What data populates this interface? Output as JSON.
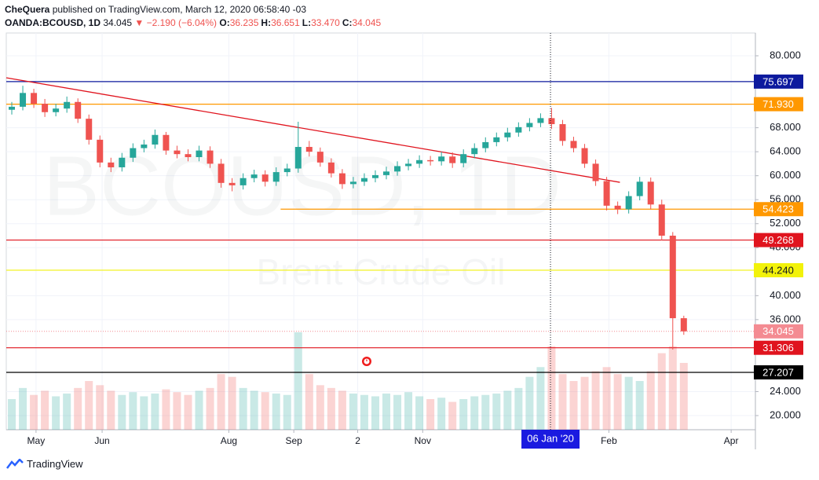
{
  "header": {
    "author": "CheQuera",
    "published": "published on TradingView.com, March 12, 2020 06:58:40 -03",
    "symbol": "OANDA:BCOUSD, 1D",
    "last": "34.045",
    "change": "▼ −2.190 (−6.04%)",
    "ohlc": [
      {
        "label": "O:",
        "value": "36.235"
      },
      {
        "label": "H:",
        "value": "36.651"
      },
      {
        "label": "L:",
        "value": "33.470"
      },
      {
        "label": "C:",
        "value": "34.045"
      }
    ]
  },
  "watermark": {
    "symbol": "BCOUSD, 1D",
    "description": "Brent Crude Oil"
  },
  "footer": {
    "brand": "TradingView"
  },
  "chart_data": {
    "type": "candlestick",
    "open": [
      71.0,
      71.5,
      73.8,
      72.0,
      70.6,
      71.2,
      72.3,
      69.5,
      66.0,
      62.2,
      61.4,
      63.0,
      64.6,
      65.2,
      66.8,
      64.2,
      63.6,
      63.1,
      64.2,
      62.0,
      58.8,
      58.4,
      59.6,
      60.2,
      59.0,
      60.6,
      61.2,
      64.8,
      64.0,
      62.2,
      60.4,
      58.6,
      59.0,
      59.6,
      60.1,
      60.7,
      61.6,
      62.0,
      62.6,
      62.4,
      63.2,
      62.1,
      63.6,
      64.6,
      65.6,
      66.4,
      67.2,
      68.1,
      68.8,
      69.6,
      68.6,
      65.8,
      64.6,
      62.0,
      59.1,
      55.0,
      54.4,
      56.6,
      59.0,
      55.2,
      50.0,
      36.235
    ],
    "high": [
      72.3,
      75.0,
      74.5,
      72.8,
      72.0,
      73.2,
      72.9,
      70.2,
      66.7,
      63.0,
      63.8,
      65.4,
      66.0,
      67.7,
      67.3,
      65.0,
      64.4,
      65.0,
      64.9,
      62.8,
      59.6,
      60.4,
      61.0,
      60.9,
      61.4,
      62.0,
      69.0,
      65.8,
      64.7,
      62.9,
      61.1,
      59.8,
      60.4,
      60.9,
      61.5,
      62.4,
      62.8,
      63.4,
      63.3,
      64.0,
      63.9,
      64.4,
      65.4,
      66.4,
      67.2,
      68.0,
      68.9,
      69.6,
      70.4,
      71.3,
      69.3,
      66.5,
      65.3,
      62.7,
      59.8,
      55.7,
      57.4,
      59.8,
      59.7,
      56.0,
      50.6,
      36.651
    ],
    "low": [
      70.2,
      70.9,
      71.3,
      69.8,
      69.9,
      70.5,
      68.8,
      65.2,
      61.4,
      60.6,
      60.7,
      62.3,
      63.9,
      64.5,
      63.5,
      62.9,
      62.4,
      62.4,
      61.3,
      58.0,
      57.4,
      57.7,
      58.9,
      58.2,
      58.3,
      59.9,
      60.5,
      63.2,
      61.5,
      59.7,
      57.8,
      57.9,
      58.3,
      58.9,
      59.4,
      60.0,
      60.9,
      61.3,
      61.7,
      61.7,
      61.3,
      61.4,
      62.9,
      63.9,
      64.9,
      65.7,
      66.5,
      67.4,
      68.1,
      67.8,
      65.0,
      63.9,
      61.3,
      58.3,
      54.2,
      53.6,
      53.7,
      55.9,
      54.4,
      49.2,
      31.0,
      33.47
    ],
    "close": [
      71.5,
      73.8,
      72.0,
      70.6,
      71.2,
      72.3,
      69.5,
      66.0,
      62.2,
      61.4,
      63.0,
      64.6,
      65.2,
      66.8,
      64.2,
      63.6,
      63.1,
      64.2,
      62.0,
      58.8,
      58.4,
      59.6,
      60.2,
      59.0,
      60.6,
      61.2,
      64.8,
      64.0,
      62.2,
      60.4,
      58.6,
      59.0,
      59.6,
      60.1,
      60.7,
      61.6,
      62.0,
      62.6,
      62.4,
      63.2,
      62.1,
      63.6,
      64.6,
      65.6,
      66.4,
      67.2,
      68.1,
      68.8,
      69.6,
      68.6,
      65.8,
      64.6,
      62.0,
      59.1,
      55.0,
      54.4,
      56.6,
      59.0,
      55.2,
      50.0,
      36.235,
      34.045
    ],
    "volume": [
      22,
      30,
      25,
      28,
      24,
      26,
      30,
      35,
      32,
      28,
      25,
      27,
      24,
      26,
      29,
      27,
      25,
      28,
      30,
      40,
      38,
      30,
      28,
      27,
      26,
      25,
      70,
      40,
      32,
      30,
      28,
      26,
      25,
      24,
      26,
      25,
      27,
      24,
      22,
      23,
      20,
      22,
      24,
      25,
      26,
      28,
      30,
      38,
      45,
      60,
      40,
      35,
      38,
      42,
      45,
      40,
      38,
      35,
      42,
      55,
      60,
      48
    ],
    "up_color": "#26a69a",
    "down_color": "#ef5350",
    "xlim": [
      -0.5,
      67.5
    ],
    "ylim": [
      17.64,
      83.8
    ],
    "xticks": [
      {
        "value": 2.2,
        "label": "May"
      },
      {
        "value": 8.2,
        "label": "Jun"
      },
      {
        "value": 19.7,
        "label": "Aug"
      },
      {
        "value": 25.6,
        "label": "Sep"
      },
      {
        "value": 31.4,
        "label": "2"
      },
      {
        "value": 37.3,
        "label": "Nov"
      },
      {
        "value": 54.2,
        "label": "Feb"
      },
      {
        "value": 65.3,
        "label": "Apr"
      }
    ],
    "yticks": [
      {
        "value": 80,
        "label": "80.000"
      },
      {
        "value": 68,
        "label": "68.000"
      },
      {
        "value": 64,
        "label": "64.000"
      },
      {
        "value": 60,
        "label": "60.000"
      },
      {
        "value": 56,
        "label": "56.000"
      },
      {
        "value": 52,
        "label": "52.000"
      },
      {
        "value": 48,
        "label": "48.000"
      },
      {
        "value": 40,
        "label": "40.000"
      },
      {
        "value": 36,
        "label": "36.000"
      },
      {
        "value": 24,
        "label": "24.000"
      },
      {
        "value": 20,
        "label": "20.000"
      }
    ],
    "grid": true,
    "levels": [
      {
        "value": 75.697,
        "color": "#0d1a9e",
        "text_color": "#ffffff"
      },
      {
        "value": 71.93,
        "color": "#ff9800",
        "text_color": "#ffffff"
      },
      {
        "value": 54.423,
        "color": "#ff9800",
        "text_color": "#ffffff",
        "from": 24.4
      },
      {
        "value": 49.268,
        "color": "#e0141e",
        "text_color": "#ffffff"
      },
      {
        "value": 44.24,
        "color": "#f2f20a",
        "text_color": "#131722"
      },
      {
        "value": 31.306,
        "color": "#e0141e",
        "text_color": "#ffffff"
      },
      {
        "value": 27.207,
        "color": "#000000",
        "text_color": "#ffffff"
      }
    ],
    "last_price": {
      "value": 34.045,
      "color": "#f48b92"
    },
    "trendline": {
      "x": [
        -0.5,
        55.2
      ],
      "y": [
        76.33,
        58.9
      ],
      "color": "#e0141e"
    },
    "crosshair": {
      "x": 48.9,
      "label": "06 Jan '20",
      "color": "#1a1ae0"
    }
  }
}
